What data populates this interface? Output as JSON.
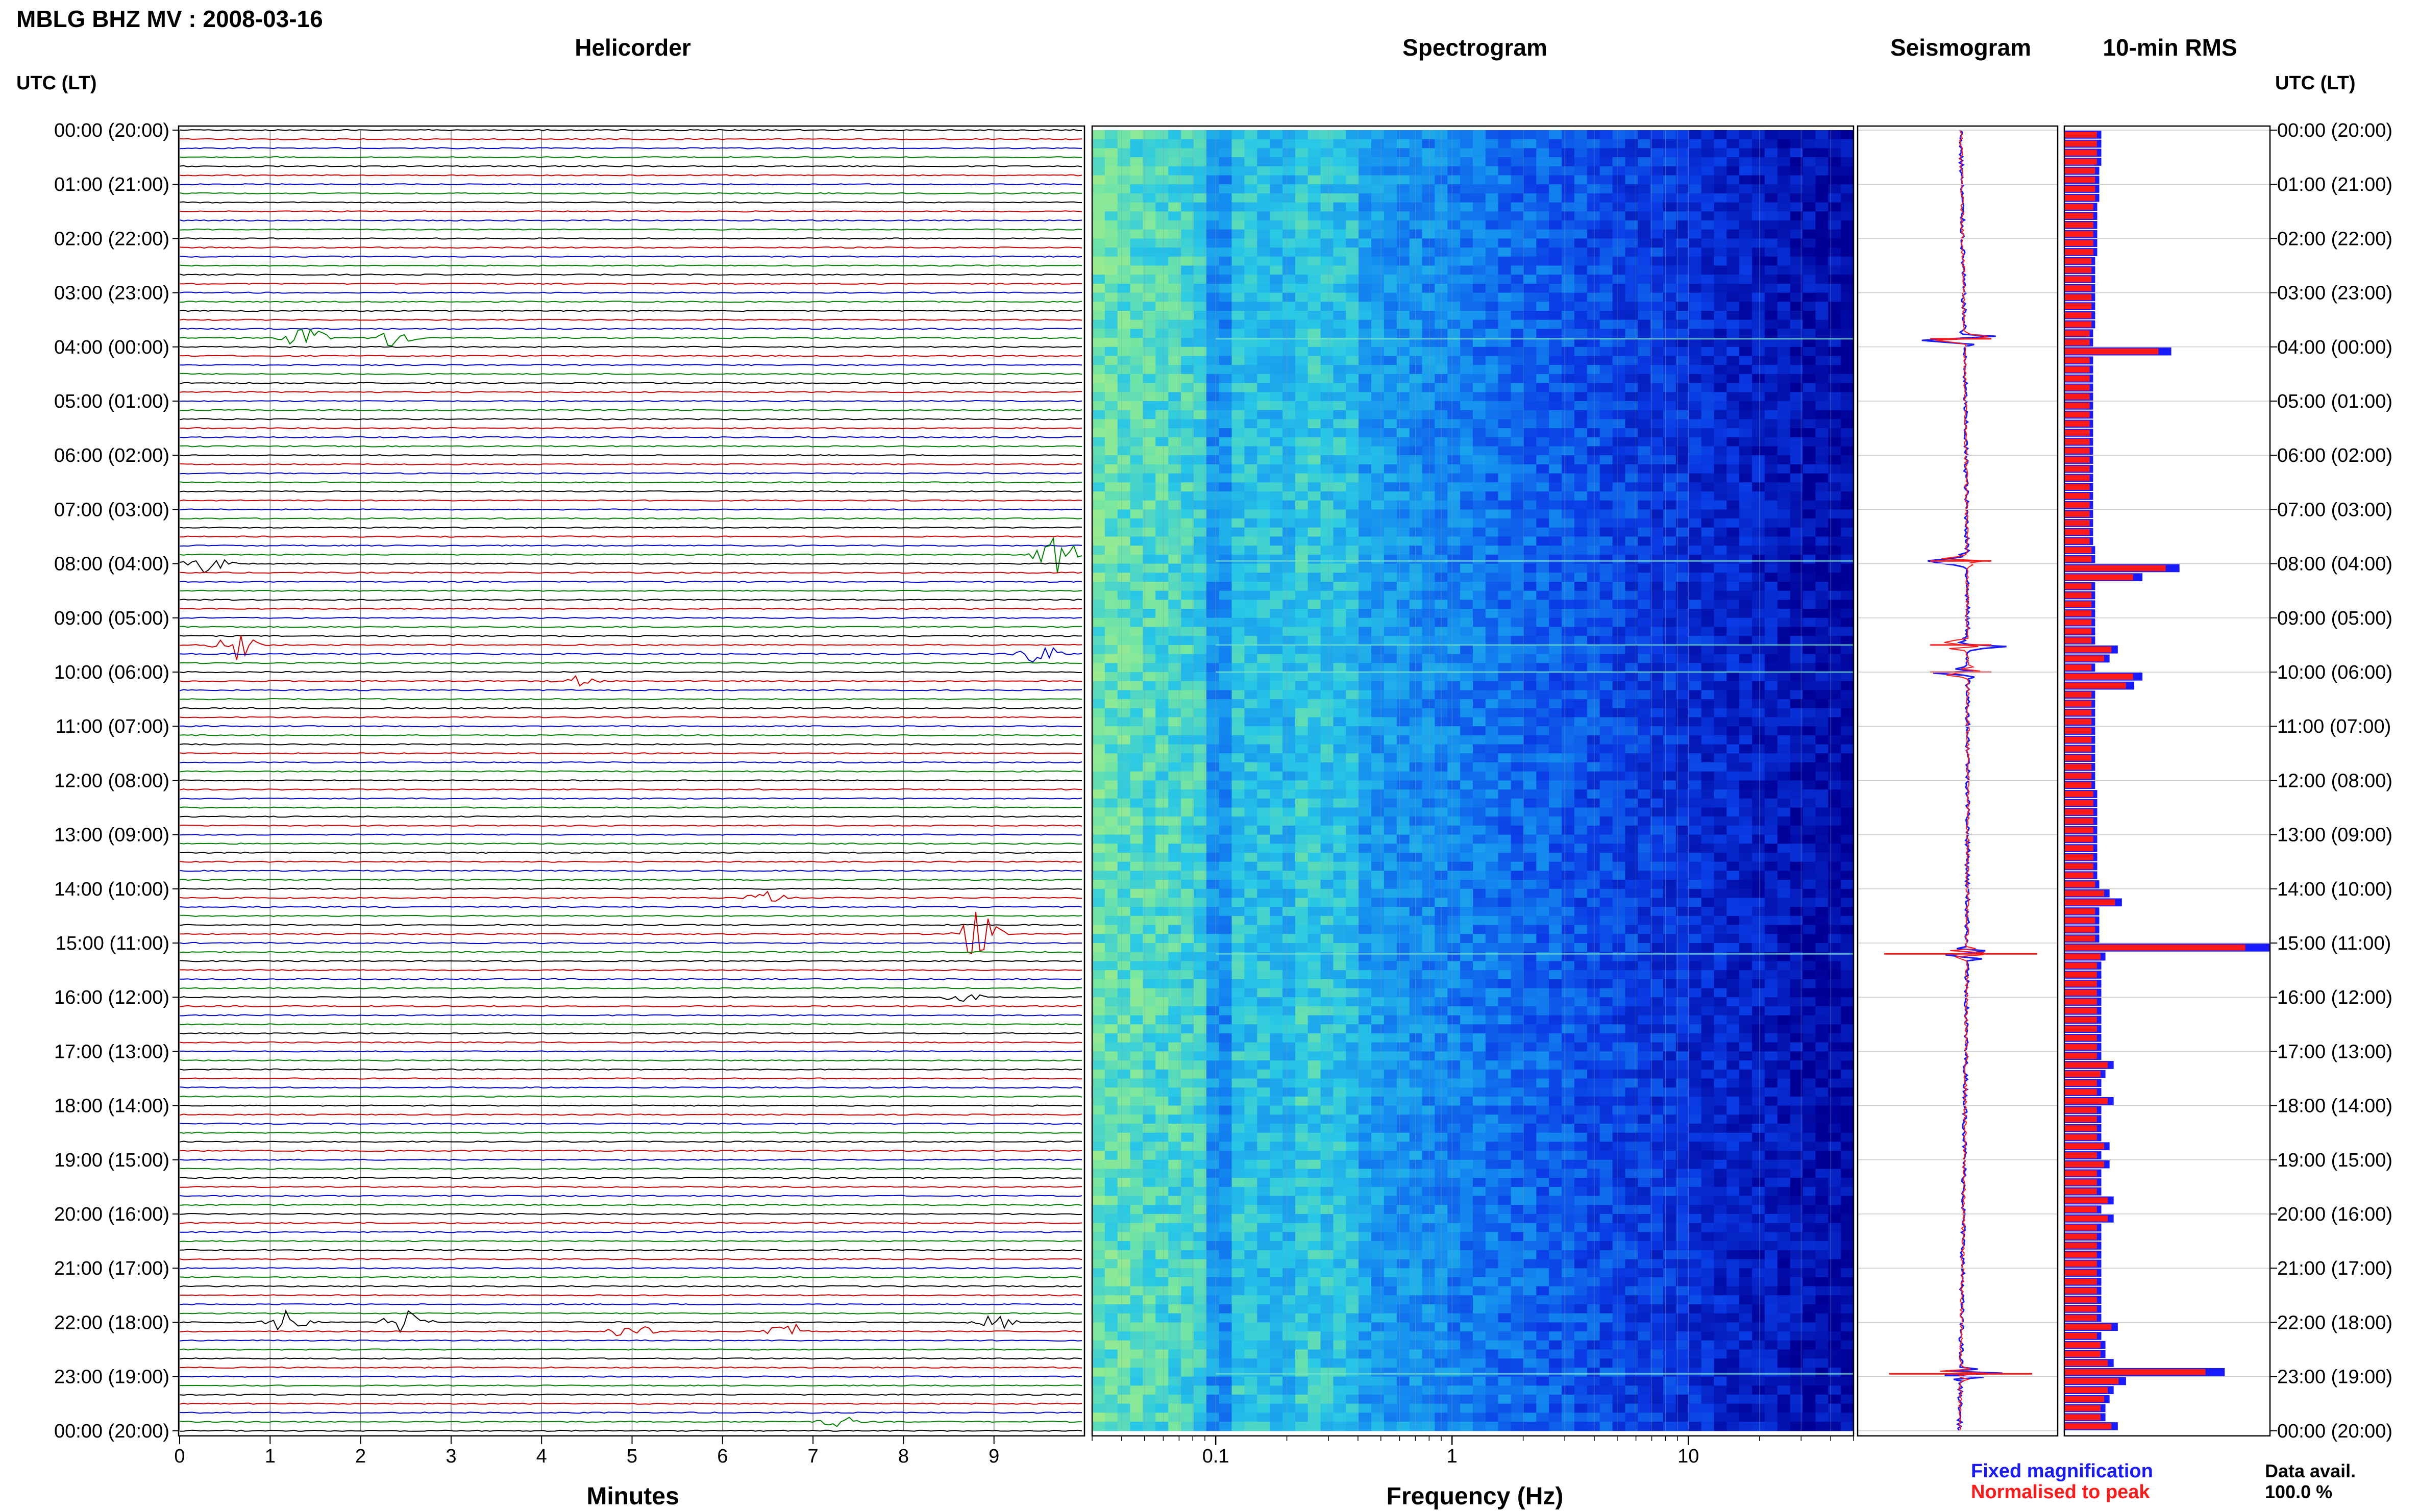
{
  "title": "MBLG BHZ MV : 2008-03-16",
  "panels": {
    "helicorder": "Helicorder",
    "spectrogram": "Spectrogram",
    "seismogram": "Seismogram",
    "rms": "10-min RMS"
  },
  "utc_label": "UTC (LT)",
  "x_axis": {
    "helicorder_label": "Minutes",
    "helicorder_ticks": [
      "0",
      "1",
      "2",
      "3",
      "4",
      "5",
      "6",
      "7",
      "8",
      "9"
    ],
    "spectrogram_label": "Frequency (Hz)",
    "spectrogram_ticks": [
      "0.1",
      "1",
      "10"
    ]
  },
  "legend": {
    "fixed": "Fixed magnification",
    "normalised": "Normalised to peak"
  },
  "data_availability": {
    "label": "Data avail.",
    "value": "100.0 %"
  },
  "colors": {
    "trace_cycle": [
      "#000000",
      "#cc0000",
      "#0000cc",
      "#008000"
    ],
    "rms_fixed": "#1a1aff",
    "rms_norm": "#ff1a1a"
  },
  "chart_data": [
    {
      "type": "line",
      "title": "Helicorder",
      "xlabel": "Minutes",
      "xlim": [
        0,
        10
      ],
      "rows_per_hour": 6,
      "y_tick_labels": [
        "00:00 (20:00)",
        "01:00 (21:00)",
        "02:00 (22:00)",
        "03:00 (23:00)",
        "04:00 (00:00)",
        "05:00 (01:00)",
        "06:00 (02:00)",
        "07:00 (03:00)",
        "08:00 (04:00)",
        "09:00 (05:00)",
        "10:00 (06:00)",
        "11:00 (07:00)",
        "12:00 (08:00)",
        "13:00 (09:00)",
        "14:00 (10:00)",
        "15:00 (11:00)",
        "16:00 (12:00)",
        "17:00 (13:00)",
        "18:00 (14:00)",
        "19:00 (15:00)",
        "20:00 (16:00)",
        "21:00 (17:00)",
        "22:00 (18:00)",
        "23:00 (19:00)",
        "00:00 (20:00)"
      ],
      "events": [
        {
          "hour": 3,
          "row": 5,
          "minute": 1.4,
          "amp": 0.9
        },
        {
          "hour": 3,
          "row": 5,
          "minute": 2.35,
          "amp": 0.7
        },
        {
          "hour": 7,
          "row": 5,
          "minute": 9.7,
          "amp": 1.4
        },
        {
          "hour": 8,
          "row": 0,
          "minute": 0.3,
          "amp": 0.8
        },
        {
          "hour": 9,
          "row": 3,
          "minute": 0.6,
          "amp": 1.2
        },
        {
          "hour": 9,
          "row": 4,
          "minute": 9.5,
          "amp": 0.8
        },
        {
          "hour": 10,
          "row": 1,
          "minute": 4.4,
          "amp": 0.4
        },
        {
          "hour": 14,
          "row": 5,
          "minute": 8.8,
          "amp": 1.8
        },
        {
          "hour": 14,
          "row": 1,
          "minute": 6.5,
          "amp": 0.5
        },
        {
          "hour": 16,
          "row": 0,
          "minute": 8.7,
          "amp": 0.4
        },
        {
          "hour": 22,
          "row": 0,
          "minute": 1.2,
          "amp": 0.9
        },
        {
          "hour": 22,
          "row": 0,
          "minute": 2.5,
          "amp": 1.0
        },
        {
          "hour": 22,
          "row": 1,
          "minute": 5.0,
          "amp": 0.6
        },
        {
          "hour": 22,
          "row": 1,
          "minute": 6.7,
          "amp": 0.7
        },
        {
          "hour": 22,
          "row": 0,
          "minute": 9.0,
          "amp": 0.6
        },
        {
          "hour": 23,
          "row": 5,
          "minute": 7.3,
          "amp": 0.5
        }
      ]
    },
    {
      "type": "heatmap",
      "title": "Spectrogram",
      "xlabel": "Frequency (Hz)",
      "x_scale": "log",
      "xlim": [
        0.03,
        50
      ],
      "x_ticks": [
        0.1,
        1,
        10
      ]
    },
    {
      "type": "line",
      "title": "Seismogram",
      "series": [
        {
          "name": "Fixed magnification"
        },
        {
          "name": "Normalised to peak"
        }
      ],
      "spikes_hour": [
        3.85,
        7.95,
        9.5,
        10.0,
        15.2,
        22.95
      ]
    },
    {
      "type": "bar",
      "title": "10-min RMS",
      "x_relative_max": 1.0,
      "hourly_values": [
        [
          0.18,
          0.18,
          0.18,
          0.18,
          0.17,
          0.17
        ],
        [
          0.17,
          0.17,
          0.16,
          0.16,
          0.16,
          0.16
        ],
        [
          0.16,
          0.16,
          0.15,
          0.15,
          0.15,
          0.15
        ],
        [
          0.15,
          0.15,
          0.15,
          0.15,
          0.14,
          0.14
        ],
        [
          0.52,
          0.14,
          0.14,
          0.14,
          0.14,
          0.14
        ],
        [
          0.14,
          0.14,
          0.14,
          0.14,
          0.14,
          0.14
        ],
        [
          0.14,
          0.14,
          0.14,
          0.14,
          0.14,
          0.14
        ],
        [
          0.14,
          0.14,
          0.14,
          0.14,
          0.15,
          0.15
        ],
        [
          0.56,
          0.38,
          0.15,
          0.15,
          0.15,
          0.15
        ],
        [
          0.15,
          0.15,
          0.15,
          0.26,
          0.22,
          0.15
        ],
        [
          0.38,
          0.34,
          0.15,
          0.15,
          0.15,
          0.15
        ],
        [
          0.15,
          0.15,
          0.15,
          0.15,
          0.15,
          0.15
        ],
        [
          0.15,
          0.16,
          0.16,
          0.16,
          0.16,
          0.16
        ],
        [
          0.16,
          0.16,
          0.16,
          0.16,
          0.16,
          0.17
        ],
        [
          0.22,
          0.28,
          0.17,
          0.17,
          0.17,
          0.17
        ],
        [
          1.0,
          0.2,
          0.18,
          0.18,
          0.18,
          0.18
        ],
        [
          0.18,
          0.18,
          0.18,
          0.18,
          0.18,
          0.18
        ],
        [
          0.18,
          0.24,
          0.2,
          0.18,
          0.18,
          0.24
        ],
        [
          0.18,
          0.18,
          0.18,
          0.18,
          0.22,
          0.18
        ],
        [
          0.22,
          0.18,
          0.18,
          0.18,
          0.24,
          0.18
        ],
        [
          0.24,
          0.18,
          0.18,
          0.18,
          0.18,
          0.18
        ],
        [
          0.18,
          0.18,
          0.18,
          0.18,
          0.18,
          0.18
        ],
        [
          0.26,
          0.18,
          0.2,
          0.2,
          0.24,
          0.78
        ],
        [
          0.3,
          0.24,
          0.22,
          0.2,
          0.2,
          0.26
        ]
      ]
    }
  ]
}
